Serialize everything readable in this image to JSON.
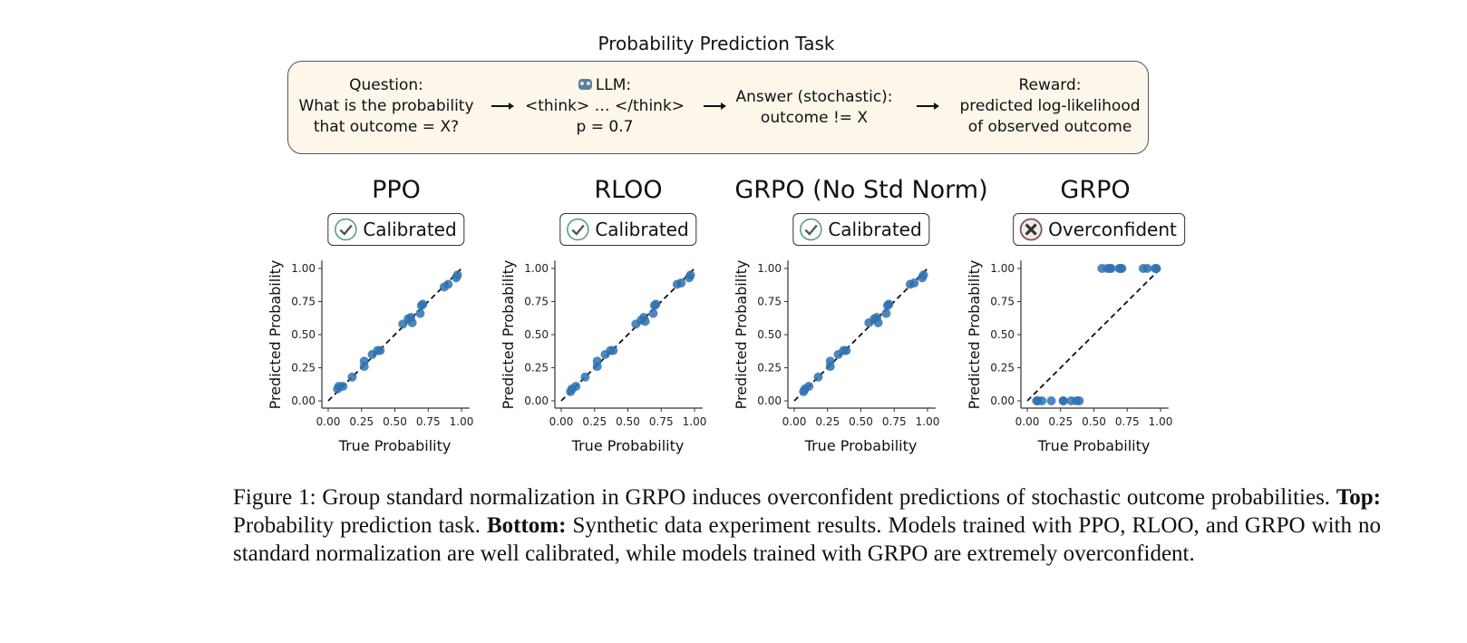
{
  "figure": {
    "top_title": "Probability Prediction Task",
    "pipeline": {
      "question": {
        "label": "Question:",
        "lines": [
          "What is the probability",
          "that outcome = X?"
        ]
      },
      "llm": {
        "label": "LLM:",
        "icon": "robot-icon",
        "lines": [
          "<think> … </think>",
          "p = 0.7"
        ]
      },
      "answer": {
        "label": "Answer (stochastic):",
        "lines": [
          "outcome != X"
        ]
      },
      "reward": {
        "label": "Reward:",
        "lines": [
          "predicted log-likelihood",
          "of observed outcome"
        ]
      }
    },
    "panels": [
      {
        "title": "PPO",
        "badge": "Calibrated",
        "badge_icon": "check-circle-icon"
      },
      {
        "title": "RLOO",
        "badge": "Calibrated",
        "badge_icon": "check-circle-icon"
      },
      {
        "title": "GRPO (No Std Norm)",
        "badge": "Calibrated",
        "badge_icon": "check-circle-icon"
      },
      {
        "title": "GRPO",
        "badge": "Overconfident",
        "badge_icon": "x-circle-icon"
      }
    ],
    "colors": {
      "points": "#2f72b0",
      "box_fill": "#fdf6ea",
      "check": "#4f9a78",
      "cross": "#7a5550"
    }
  },
  "chart_data": [
    {
      "type": "scatter",
      "title": "PPO",
      "xlabel": "True Probability",
      "ylabel": "Predicted Probability",
      "xlim": [
        0,
        1
      ],
      "ylim": [
        0,
        1
      ],
      "ticks": [
        "0.00",
        "0.25",
        "0.50",
        "0.75",
        "1.00"
      ],
      "reference_line": "y = x (dashed)",
      "points": [
        [
          0.07,
          0.09
        ],
        [
          0.08,
          0.11
        ],
        [
          0.11,
          0.11
        ],
        [
          0.18,
          0.18
        ],
        [
          0.27,
          0.26
        ],
        [
          0.27,
          0.3
        ],
        [
          0.33,
          0.35
        ],
        [
          0.37,
          0.38
        ],
        [
          0.39,
          0.38
        ],
        [
          0.56,
          0.58
        ],
        [
          0.6,
          0.62
        ],
        [
          0.62,
          0.63
        ],
        [
          0.63,
          0.59
        ],
        [
          0.69,
          0.66
        ],
        [
          0.7,
          0.72
        ],
        [
          0.71,
          0.73
        ],
        [
          0.87,
          0.86
        ],
        [
          0.9,
          0.88
        ],
        [
          0.96,
          0.93
        ],
        [
          0.97,
          0.95
        ]
      ]
    },
    {
      "type": "scatter",
      "title": "RLOO",
      "xlabel": "True Probability",
      "ylabel": "Predicted Probability",
      "xlim": [
        0,
        1
      ],
      "ylim": [
        0,
        1
      ],
      "ticks": [
        "0.00",
        "0.25",
        "0.50",
        "0.75",
        "1.00"
      ],
      "reference_line": "y = x (dashed)",
      "points": [
        [
          0.07,
          0.07
        ],
        [
          0.08,
          0.09
        ],
        [
          0.11,
          0.11
        ],
        [
          0.18,
          0.18
        ],
        [
          0.27,
          0.26
        ],
        [
          0.27,
          0.3
        ],
        [
          0.33,
          0.35
        ],
        [
          0.37,
          0.38
        ],
        [
          0.39,
          0.38
        ],
        [
          0.56,
          0.58
        ],
        [
          0.6,
          0.61
        ],
        [
          0.62,
          0.63
        ],
        [
          0.63,
          0.6
        ],
        [
          0.69,
          0.66
        ],
        [
          0.7,
          0.72
        ],
        [
          0.71,
          0.73
        ],
        [
          0.87,
          0.88
        ],
        [
          0.9,
          0.89
        ],
        [
          0.96,
          0.93
        ],
        [
          0.97,
          0.95
        ]
      ]
    },
    {
      "type": "scatter",
      "title": "GRPO (No Std Norm)",
      "xlabel": "True Probability",
      "ylabel": "Predicted Probability",
      "xlim": [
        0,
        1
      ],
      "ylim": [
        0,
        1
      ],
      "ticks": [
        "0.00",
        "0.25",
        "0.50",
        "0.75",
        "1.00"
      ],
      "reference_line": "y = x (dashed)",
      "points": [
        [
          0.07,
          0.07
        ],
        [
          0.08,
          0.09
        ],
        [
          0.11,
          0.11
        ],
        [
          0.18,
          0.18
        ],
        [
          0.27,
          0.26
        ],
        [
          0.27,
          0.3
        ],
        [
          0.33,
          0.35
        ],
        [
          0.37,
          0.38
        ],
        [
          0.39,
          0.38
        ],
        [
          0.56,
          0.59
        ],
        [
          0.6,
          0.62
        ],
        [
          0.62,
          0.63
        ],
        [
          0.63,
          0.59
        ],
        [
          0.69,
          0.66
        ],
        [
          0.7,
          0.72
        ],
        [
          0.71,
          0.73
        ],
        [
          0.87,
          0.88
        ],
        [
          0.9,
          0.89
        ],
        [
          0.96,
          0.93
        ],
        [
          0.97,
          0.95
        ]
      ]
    },
    {
      "type": "scatter",
      "title": "GRPO",
      "xlabel": "True Probability",
      "ylabel": "Predicted Probability",
      "xlim": [
        0,
        1
      ],
      "ylim": [
        0,
        1
      ],
      "ticks": [
        "0.00",
        "0.25",
        "0.50",
        "0.75",
        "1.00"
      ],
      "reference_line": "y = x (dashed)",
      "points": [
        [
          0.07,
          0
        ],
        [
          0.08,
          0
        ],
        [
          0.11,
          0
        ],
        [
          0.18,
          0
        ],
        [
          0.27,
          0
        ],
        [
          0.27,
          0
        ],
        [
          0.33,
          0
        ],
        [
          0.37,
          0
        ],
        [
          0.39,
          0
        ],
        [
          0.56,
          1
        ],
        [
          0.6,
          1
        ],
        [
          0.62,
          1
        ],
        [
          0.63,
          1
        ],
        [
          0.69,
          1
        ],
        [
          0.7,
          1
        ],
        [
          0.71,
          1
        ],
        [
          0.87,
          1
        ],
        [
          0.9,
          1
        ],
        [
          0.96,
          1
        ],
        [
          0.97,
          1
        ]
      ]
    }
  ],
  "caption": {
    "prefix": "Figure 1: Group standard normalization in GRPO induces overconfident predictions of stochastic outcome probabilities. ",
    "top_label": "Top:",
    "top_text": " Probability prediction task. ",
    "bottom_label": "Bottom:",
    "bottom_text": " Synthetic data experiment results. Models trained with PPO, RLOO, and GRPO with no standard normal­ization are well calibrated, while models trained with GRPO are extremely overconfident."
  }
}
